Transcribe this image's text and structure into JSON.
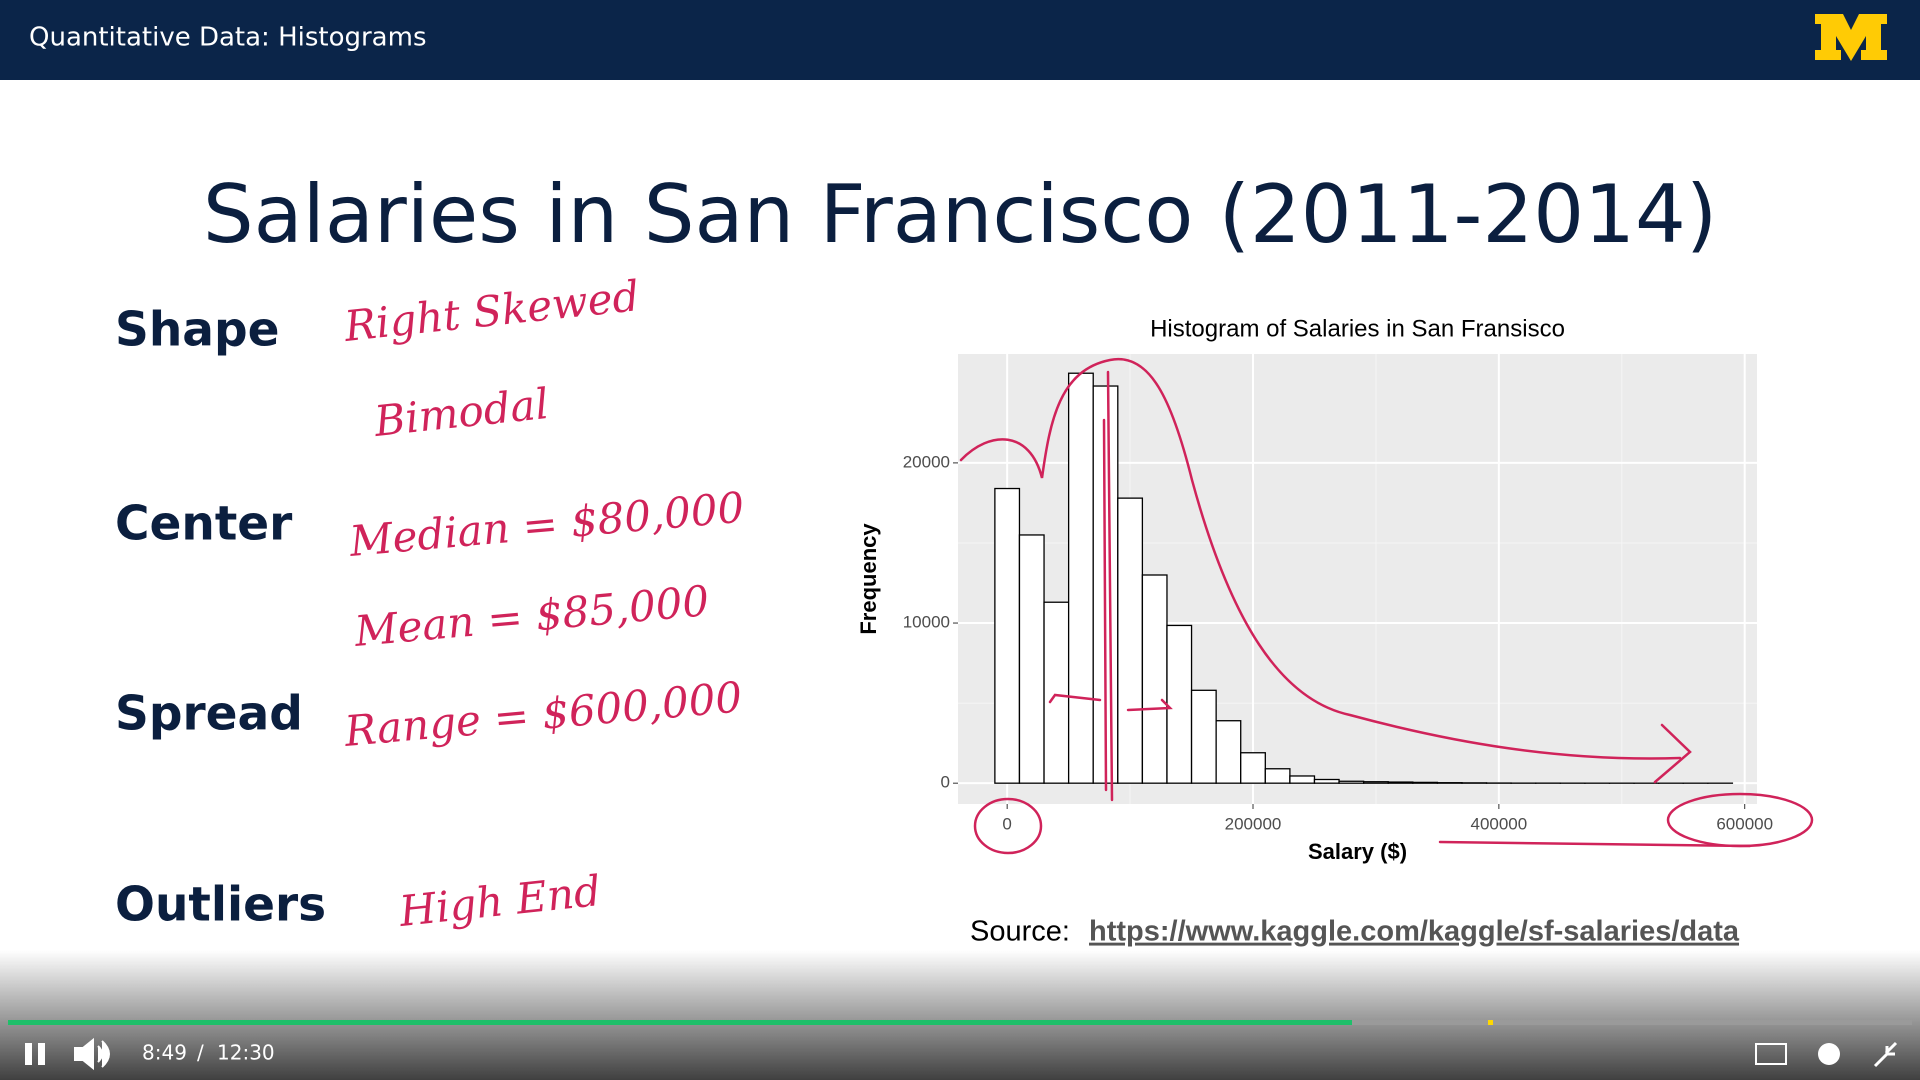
{
  "header": {
    "title": "Quantitative Data: Histograms"
  },
  "slide": {
    "title": "Salaries in San Francisco (2011-2014)",
    "labels": [
      "Shape",
      "Center",
      "Spread",
      "Outliers"
    ],
    "notes": [
      "Right Skewed",
      "Bimodal",
      "Median = $80,000",
      "Mean = $85,000",
      "Range = $600,000",
      "High End"
    ],
    "source": {
      "label": "Source:",
      "link": "https://www.kaggle.com/kaggle/sf-salaries/data"
    }
  },
  "chart_data": {
    "type": "histogram",
    "title": "Histogram of Salaries in San Fransisco",
    "x_label": "Salary ($)",
    "y_label": "Frequency",
    "bins": [
      -10000,
      10000,
      30000,
      50000,
      70000,
      90000,
      110000,
      130000,
      150000,
      170000,
      190000,
      210000,
      230000,
      250000,
      270000,
      290000,
      310000,
      330000,
      350000,
      370000,
      390000,
      410000,
      430000,
      450000,
      470000,
      490000,
      510000,
      530000,
      550000,
      570000,
      590000
    ],
    "values": [
      18400,
      15500,
      11300,
      25600,
      24800,
      17800,
      13000,
      9850,
      5800,
      3900,
      1900,
      900,
      450,
      230,
      120,
      90,
      70,
      50,
      30,
      20,
      10,
      5,
      5,
      3,
      2,
      2,
      1,
      1,
      1,
      1
    ],
    "color": "#ffffff",
    "xlim": [
      -40000,
      610000
    ],
    "ylim": [
      -1300,
      26800
    ],
    "xticks": [
      0,
      200000,
      400000,
      600000
    ],
    "yticks": [
      0,
      10000,
      20000
    ],
    "grid": true
  },
  "player": {
    "current_time": "8:49",
    "separator": "/",
    "duration": "12:30"
  }
}
